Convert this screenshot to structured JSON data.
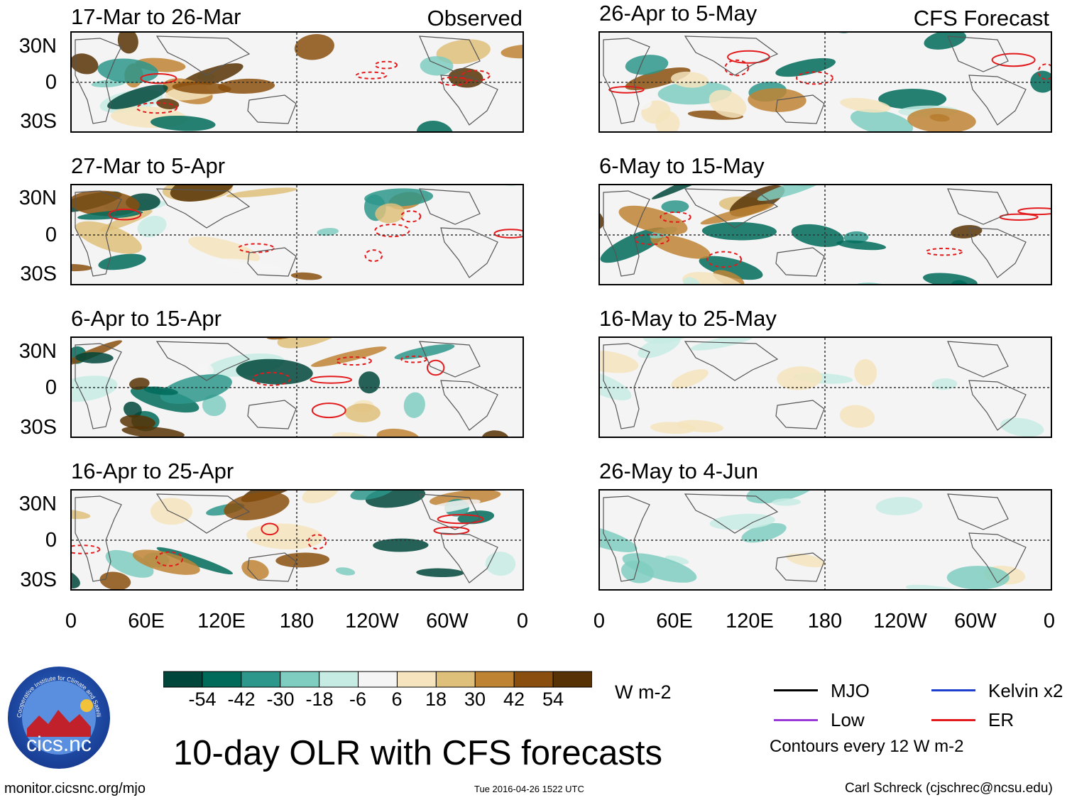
{
  "chart_data": {
    "type": "heatmap",
    "title": "10-day OLR with CFS forecasts",
    "colorbar": {
      "ticks": [
        "-54",
        "-42",
        "-30",
        "-18",
        "-6",
        "6",
        "18",
        "30",
        "42",
        "54"
      ],
      "units": "W m-2",
      "colors": [
        "#00463a",
        "#006b5b",
        "#2d978b",
        "#7fcdc0",
        "#c6ebe3",
        "#f5f5f5",
        "#f5e4bd",
        "#dfc07b",
        "#be8434",
        "#8a4f0e",
        "#573205"
      ]
    },
    "x_ticks": [
      "0",
      "60E",
      "120E",
      "180",
      "120W",
      "60W",
      "0"
    ],
    "y_ticks": [
      "30N",
      "0",
      "30S"
    ],
    "columns": {
      "left": "Observed",
      "right": "CFS Forecast"
    },
    "panels_left": [
      {
        "label": "17-Mar to 26-Mar"
      },
      {
        "label": "27-Mar to 5-Apr"
      },
      {
        "label": "6-Apr to 15-Apr"
      },
      {
        "label": "16-Apr to 25-Apr"
      }
    ],
    "panels_right": [
      {
        "label": "26-Apr to 5-May"
      },
      {
        "label": "6-May to 15-May"
      },
      {
        "label": "16-May to 25-May"
      },
      {
        "label": "26-May to 4-Jun"
      }
    ],
    "legend": {
      "items": [
        {
          "label": "MJO",
          "color": "#000000"
        },
        {
          "label": "Kelvin x2",
          "color": "#1d3fcf"
        },
        {
          "label": "Low",
          "color": "#9a3ad6"
        },
        {
          "label": "ER",
          "color": "#e31a1c"
        }
      ],
      "note": "Contours every 12 W m-2"
    }
  },
  "logo": {
    "text": "cics.nc",
    "ring_text": "Cooperative Institute for Climate and Satellites"
  },
  "footer": {
    "url": "monitor.cicsnc.org/mjo",
    "timestamp": "Tue 2016-04-26 1522 UTC",
    "credit": "Carl Schreck (cjschrec@ncsu.edu)"
  }
}
